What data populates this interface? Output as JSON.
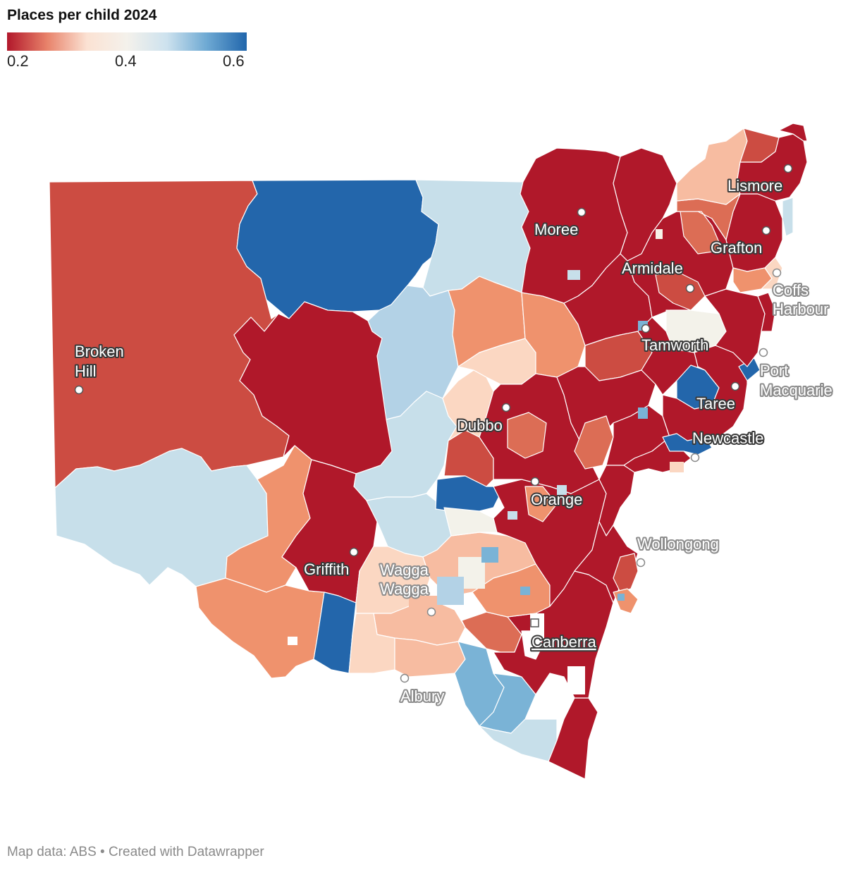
{
  "title": "Places per child 2024",
  "legend": {
    "ticks": [
      "0.2",
      "0.4",
      "0.6"
    ],
    "colors": [
      "#b2182b",
      "#e8826a",
      "#fbe2d3",
      "#f4f1eb",
      "#cde2ee",
      "#6ea9d3",
      "#2166ac"
    ]
  },
  "palette": {
    "very_low": "#b0182a",
    "low": "#cc4c42",
    "mid_low": "#dc6d55",
    "salmon": "#ef926d",
    "peach": "#f7bca1",
    "light_peach": "#fbd7c2",
    "neutral": "#f3f2ea",
    "light_blue": "#c7dfea",
    "pale_blue": "#b3d2e6",
    "mid_blue": "#7ab3d6",
    "high": "#2366ab"
  },
  "cities": [
    {
      "name": "Lismore",
      "lines": [
        "Lismore"
      ],
      "style": "dark"
    },
    {
      "name": "Moree",
      "lines": [
        "Moree"
      ],
      "style": "dark"
    },
    {
      "name": "Grafton",
      "lines": [
        "Grafton"
      ],
      "style": "dark"
    },
    {
      "name": "Armidale",
      "lines": [
        "Armidale"
      ],
      "style": "dark"
    },
    {
      "name": "Coffs Harbour",
      "lines": [
        "Coffs",
        "Harbour"
      ],
      "style": "light"
    },
    {
      "name": "Broken Hill",
      "lines": [
        "Broken",
        "Hill"
      ],
      "style": "dark"
    },
    {
      "name": "Tamworth",
      "lines": [
        "Tamworth"
      ],
      "style": "dark"
    },
    {
      "name": "Port Macquarie",
      "lines": [
        "Port",
        "Macquarie"
      ],
      "style": "light"
    },
    {
      "name": "Taree",
      "lines": [
        "Taree"
      ],
      "style": "dark"
    },
    {
      "name": "Dubbo",
      "lines": [
        "Dubbo"
      ],
      "style": "dark"
    },
    {
      "name": "Newcastle",
      "lines": [
        "Newcastle"
      ],
      "style": "dark"
    },
    {
      "name": "Orange",
      "lines": [
        "Orange"
      ],
      "style": "dark"
    },
    {
      "name": "Wollongong",
      "lines": [
        "Wollongong"
      ],
      "style": "light"
    },
    {
      "name": "Griffith",
      "lines": [
        "Griffith"
      ],
      "style": "dark"
    },
    {
      "name": "Wagga Wagga",
      "lines": [
        "Wagga",
        "Wagga"
      ],
      "style": "light"
    },
    {
      "name": "Canberra",
      "lines": [
        "Canberra"
      ],
      "style": "dark"
    },
    {
      "name": "Albury",
      "lines": [
        "Albury"
      ],
      "style": "light"
    }
  ],
  "footer": "Map data: ABS • Created with Datawrapper"
}
